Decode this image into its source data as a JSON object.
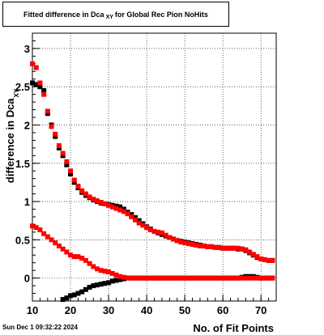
{
  "title": {
    "prefix": "Fitted difference in Dca",
    "subscript": "XY",
    "suffix": "for Global Rec Pion NoHits"
  },
  "timestamp": "Sun Dec  1 09:32:22 2024",
  "chart_data": {
    "type": "scatter",
    "title": "Fitted difference in Dca XY for Global Rec Pion NoHits",
    "xlabel": "No. of Fit Points",
    "ylabel": "difference in Dca",
    "ylabel_subscript": "XY",
    "xlim": [
      10,
      74
    ],
    "ylim": [
      -0.3,
      3.2
    ],
    "xticks": [
      10,
      20,
      30,
      40,
      50,
      60,
      70
    ],
    "yticks": [
      0,
      0.5,
      1,
      1.5,
      2,
      2.5,
      3
    ],
    "ytick_labels": [
      "0",
      "0.5",
      "1",
      "1.5",
      "2",
      "2.5",
      "3"
    ],
    "grid": true,
    "series": [
      {
        "color": "#000000",
        "points": [
          [
            10,
            2.55
          ],
          [
            11,
            2.53
          ],
          [
            12,
            2.5
          ],
          [
            13,
            2.45
          ],
          [
            14,
            2.15
          ],
          [
            15,
            2.0
          ],
          [
            16,
            1.85
          ],
          [
            17,
            1.7
          ],
          [
            18,
            1.6
          ],
          [
            19,
            1.48
          ],
          [
            20,
            1.36
          ],
          [
            21,
            1.25
          ],
          [
            22,
            1.18
          ],
          [
            23,
            1.12
          ],
          [
            24,
            1.08
          ],
          [
            25,
            1.05
          ],
          [
            26,
            1.02
          ],
          [
            27,
            1.0
          ],
          [
            28,
            0.98
          ],
          [
            29,
            0.97
          ],
          [
            30,
            0.96
          ],
          [
            31,
            0.95
          ],
          [
            32,
            0.94
          ],
          [
            33,
            0.93
          ],
          [
            34,
            0.9
          ],
          [
            35,
            0.86
          ],
          [
            36,
            0.83
          ],
          [
            37,
            0.79
          ],
          [
            38,
            0.75
          ],
          [
            39,
            0.71
          ],
          [
            40,
            0.67
          ],
          [
            41,
            0.64
          ],
          [
            42,
            0.61
          ],
          [
            43,
            0.59
          ],
          [
            44,
            0.57
          ],
          [
            45,
            0.55
          ],
          [
            46,
            0.53
          ],
          [
            47,
            0.51
          ],
          [
            48,
            0.49
          ],
          [
            49,
            0.48
          ],
          [
            50,
            0.47
          ],
          [
            51,
            0.46
          ],
          [
            52,
            0.45
          ],
          [
            53,
            0.44
          ],
          [
            54,
            0.43
          ],
          [
            55,
            0.42
          ],
          [
            56,
            0.41
          ],
          [
            57,
            0.41
          ],
          [
            58,
            0.4
          ],
          [
            59,
            0.4
          ],
          [
            60,
            0.39
          ],
          [
            61,
            0.39
          ],
          [
            62,
            0.39
          ],
          [
            63,
            0.39
          ],
          [
            64,
            0.38
          ],
          [
            65,
            0.38
          ],
          [
            66,
            0.36
          ],
          [
            67,
            0.33
          ],
          [
            68,
            0.3
          ],
          [
            69,
            0.27
          ],
          [
            70,
            0.25
          ],
          [
            71,
            0.24
          ],
          [
            72,
            0.23
          ],
          [
            73,
            0.23
          ]
        ]
      },
      {
        "color": "#ff0000",
        "points": [
          [
            10,
            2.8
          ],
          [
            11,
            2.75
          ],
          [
            12,
            2.55
          ],
          [
            13,
            2.4
          ],
          [
            14,
            2.18
          ],
          [
            15,
            1.98
          ],
          [
            16,
            1.88
          ],
          [
            17,
            1.73
          ],
          [
            18,
            1.63
          ],
          [
            19,
            1.52
          ],
          [
            20,
            1.4
          ],
          [
            21,
            1.28
          ],
          [
            22,
            1.2
          ],
          [
            23,
            1.14
          ],
          [
            24,
            1.1
          ],
          [
            25,
            1.06
          ],
          [
            26,
            1.03
          ],
          [
            27,
            1.01
          ],
          [
            28,
            0.99
          ],
          [
            29,
            0.97
          ],
          [
            30,
            0.95
          ],
          [
            31,
            0.93
          ],
          [
            32,
            0.91
          ],
          [
            33,
            0.89
          ],
          [
            34,
            0.87
          ],
          [
            35,
            0.84
          ],
          [
            36,
            0.8
          ],
          [
            37,
            0.76
          ],
          [
            38,
            0.72
          ],
          [
            39,
            0.69
          ],
          [
            40,
            0.66
          ],
          [
            41,
            0.63
          ],
          [
            42,
            0.61
          ],
          [
            43,
            0.6
          ],
          [
            44,
            0.59
          ],
          [
            45,
            0.56
          ],
          [
            46,
            0.53
          ],
          [
            47,
            0.51
          ],
          [
            48,
            0.49
          ],
          [
            49,
            0.47
          ],
          [
            50,
            0.46
          ],
          [
            51,
            0.45
          ],
          [
            52,
            0.44
          ],
          [
            53,
            0.43
          ],
          [
            54,
            0.42
          ],
          [
            55,
            0.42
          ],
          [
            56,
            0.41
          ],
          [
            57,
            0.41
          ],
          [
            58,
            0.4
          ],
          [
            59,
            0.4
          ],
          [
            60,
            0.39
          ],
          [
            61,
            0.39
          ],
          [
            62,
            0.39
          ],
          [
            63,
            0.39
          ],
          [
            64,
            0.39
          ],
          [
            65,
            0.38
          ],
          [
            66,
            0.37
          ],
          [
            67,
            0.34
          ],
          [
            68,
            0.31
          ],
          [
            69,
            0.28
          ],
          [
            70,
            0.25
          ],
          [
            71,
            0.24
          ],
          [
            72,
            0.23
          ],
          [
            73,
            0.23
          ]
        ]
      },
      {
        "color": "#000000",
        "points": [
          [
            18,
            -0.28
          ],
          [
            19,
            -0.26
          ],
          [
            20,
            -0.23
          ],
          [
            21,
            -0.22
          ],
          [
            22,
            -0.2
          ],
          [
            23,
            -0.18
          ],
          [
            24,
            -0.15
          ],
          [
            25,
            -0.12
          ],
          [
            26,
            -0.1
          ],
          [
            27,
            -0.09
          ],
          [
            28,
            -0.08
          ],
          [
            29,
            -0.07
          ],
          [
            30,
            -0.06
          ],
          [
            31,
            -0.04
          ],
          [
            32,
            -0.03
          ],
          [
            33,
            -0.02
          ],
          [
            34,
            -0.01
          ],
          [
            35,
            0.0
          ],
          [
            36,
            0.0
          ],
          [
            37,
            0.0
          ],
          [
            38,
            0.0
          ],
          [
            39,
            0.0
          ],
          [
            40,
            0.0
          ],
          [
            41,
            0.0
          ],
          [
            42,
            0.0
          ],
          [
            43,
            0.0
          ],
          [
            44,
            0.0
          ],
          [
            45,
            0.0
          ],
          [
            46,
            0.0
          ],
          [
            47,
            0.0
          ],
          [
            48,
            0.0
          ],
          [
            49,
            0.0
          ],
          [
            50,
            0.0
          ],
          [
            51,
            0.0
          ],
          [
            52,
            0.0
          ],
          [
            53,
            0.0
          ],
          [
            54,
            0.0
          ],
          [
            55,
            0.0
          ],
          [
            56,
            0.0
          ],
          [
            57,
            0.0
          ],
          [
            58,
            0.0
          ],
          [
            59,
            0.0
          ],
          [
            60,
            0.0
          ],
          [
            61,
            0.0
          ],
          [
            62,
            0.0
          ],
          [
            63,
            0.0
          ],
          [
            64,
            0.0
          ],
          [
            65,
            0.01
          ],
          [
            66,
            0.02
          ],
          [
            67,
            0.02
          ],
          [
            68,
            0.02
          ],
          [
            69,
            0.01
          ],
          [
            70,
            0.0
          ],
          [
            71,
            0.0
          ],
          [
            72,
            0.0
          ],
          [
            73,
            0.0
          ]
        ]
      },
      {
        "color": "#ff0000",
        "points": [
          [
            10,
            0.68
          ],
          [
            11,
            0.66
          ],
          [
            12,
            0.63
          ],
          [
            13,
            0.58
          ],
          [
            14,
            0.54
          ],
          [
            15,
            0.5
          ],
          [
            16,
            0.46
          ],
          [
            17,
            0.42
          ],
          [
            18,
            0.38
          ],
          [
            19,
            0.34
          ],
          [
            20,
            0.3
          ],
          [
            21,
            0.28
          ],
          [
            22,
            0.28
          ],
          [
            23,
            0.26
          ],
          [
            24,
            0.23
          ],
          [
            25,
            0.19
          ],
          [
            26,
            0.15
          ],
          [
            27,
            0.12
          ],
          [
            28,
            0.1
          ],
          [
            29,
            0.09
          ],
          [
            30,
            0.08
          ],
          [
            31,
            0.06
          ],
          [
            32,
            0.04
          ],
          [
            33,
            0.02
          ],
          [
            34,
            0.01
          ],
          [
            35,
            0.0
          ],
          [
            36,
            0.0
          ],
          [
            37,
            0.0
          ],
          [
            38,
            0.0
          ],
          [
            39,
            0.0
          ],
          [
            40,
            0.0
          ],
          [
            41,
            0.0
          ],
          [
            42,
            0.0
          ],
          [
            43,
            0.0
          ],
          [
            44,
            0.0
          ],
          [
            45,
            0.0
          ],
          [
            46,
            0.0
          ],
          [
            47,
            0.0
          ],
          [
            48,
            0.0
          ],
          [
            49,
            0.0
          ],
          [
            50,
            0.0
          ],
          [
            51,
            0.0
          ],
          [
            52,
            0.0
          ],
          [
            53,
            0.0
          ],
          [
            54,
            0.0
          ],
          [
            55,
            0.0
          ],
          [
            56,
            0.0
          ],
          [
            57,
            0.0
          ],
          [
            58,
            0.0
          ],
          [
            59,
            0.0
          ],
          [
            60,
            0.0
          ],
          [
            61,
            0.0
          ],
          [
            62,
            0.0
          ],
          [
            63,
            0.0
          ],
          [
            64,
            0.0
          ],
          [
            65,
            0.0
          ],
          [
            66,
            0.0
          ],
          [
            67,
            0.0
          ],
          [
            68,
            0.0
          ],
          [
            69,
            0.0
          ],
          [
            70,
            0.0
          ],
          [
            71,
            0.0
          ],
          [
            72,
            0.0
          ],
          [
            73,
            0.0
          ]
        ]
      }
    ]
  }
}
